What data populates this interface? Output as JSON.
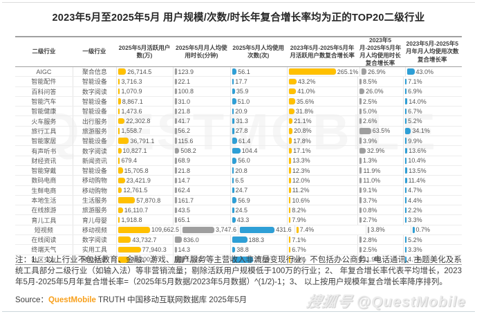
{
  "title": "2023年5月至2025年5月 用户规模/次数/时长年复合增长率均为正的TOP20二级行业",
  "chart_data": {
    "type": "table",
    "title": "2023年5月至2025年5月 用户规模/次数/时长年复合增长率均为正的TOP20二级行业",
    "columns": [
      "二级行业",
      "一级行业",
      "2025年5月活跃用户数(万)",
      "2025年5月月人均使用时长(分钟)",
      "2025年5月人均使用次数(次)",
      "2023年5月-2025年5月年月活跃用户数复合增长率",
      "2023年5月-2025年5月年月人均使用时长复合增长率",
      "2023年5月-2025年5月年月人均使用次数复合增长率"
    ],
    "rows": [
      [
        "AIGC",
        "聚合信息",
        "26,714.5",
        "123.9",
        "56.1",
        "265.1%",
        "26.9%",
        "43.0%"
      ],
      [
        "智能配件",
        "智能设备",
        "3,716.3",
        "22.1",
        "17.7",
        "43.2%",
        "8.5%",
        "7.1%"
      ],
      [
        "百科问答",
        "数字阅读",
        "1,070.9",
        "100.8",
        "35.9",
        "41.0%",
        "26.0%",
        "6.9%"
      ],
      [
        "智能汽车",
        "智能设备",
        "8,867.1",
        "31.0",
        "51.0",
        "35.6%",
        "2.5%",
        "14.0%"
      ],
      [
        "智能健康",
        "智能设备",
        "1,473.6",
        "21.8",
        "20.9",
        "31.8%",
        "5.0%",
        "6.7%"
      ],
      [
        "火车服务",
        "出行服务",
        "22,302.8",
        "41.7",
        "31.3",
        "21.1%",
        "2.6%",
        "5.2%"
      ],
      [
        "旅行工具",
        "旅游服务",
        "1,558.7",
        "56.2",
        "27.8",
        "20.8%",
        "63.5%",
        "34.1%"
      ],
      [
        "智能家居",
        "智能设备",
        "36,791.1",
        "115.6",
        "61.4",
        "17.8%",
        "3.9%",
        "9.9%"
      ],
      [
        "有声听书",
        "数字阅读",
        "10,827.1",
        "508.2",
        "104.4",
        "17.1%",
        "32.9%",
        "13.6%"
      ],
      [
        "财经资讯",
        "新闻资讯",
        "679.4",
        "68.9",
        "56.0",
        "13.3%",
        "1.3%",
        "10.4%"
      ],
      [
        "智能穿戴",
        "智能设备",
        "15,705.8",
        "21.8",
        "20.8",
        "12.3%",
        "11.9%",
        "13.5%"
      ],
      [
        "数码电商",
        "移动购物",
        "23,421.9",
        "14.7",
        "6.5",
        "12.0%",
        "11.0%",
        "11.4%"
      ],
      [
        "生鲜电商",
        "移动购物",
        "12,761.5",
        "62.4",
        "24.7",
        "11.2%",
        "9.1%",
        "4.7%"
      ],
      [
        "本地生活",
        "生活服务",
        "57,870.8",
        "161.7",
        "56.9",
        "10.6%",
        "3.7%",
        "4.4%"
      ],
      [
        "在线旅游",
        "旅游服务",
        "16,110.7",
        "43.5",
        "24.5",
        "8.2%",
        "0.8%",
        "2.2%"
      ],
      [
        "育儿工具",
        "育儿母婴",
        "1,918.8",
        "65.1",
        "43.3",
        "7.9%",
        "2.7%",
        "3.3%"
      ],
      [
        "短视频",
        "移动视频",
        "109,662.5",
        "3,747.6",
        "431.6",
        "7.4%",
        "3.8%",
        "0.7%"
      ],
      [
        "在线阅读",
        "数字阅读",
        "43,732.7",
        "836.0",
        "188.3",
        "7.1%",
        "2.8%",
        "5.2%"
      ],
      [
        "终端天气",
        "实用工具",
        "77,940.3",
        "14.3",
        "38.8",
        "6.7%",
        "2.5%",
        "3.3%"
      ],
      [
        "社区交友",
        "移动社交",
        "39,200.9",
        "1,122.7",
        "257.9",
        "5.4%",
        "11.9%",
        "4.7%"
      ]
    ]
  },
  "notes": "注：1、 以上行业不包括教育、金融、游戏、房产服务等主营收入非流量变现行业；不包括办公商务、电话通讯、主题美化及系统工具部分二级行业（如输入法）等非营销流量；剔除活跃用户规模低于100万的行业；2、 年复合增长率代表平均增长，2023年5月-2025年5月年复合增长率=（2025年5月数据/2023年5月数据）^(1/2)-1；3、 以上按用户规模年复合增长率降序排列。",
  "source": {
    "prefix": "Source：",
    "brand": "QuestMobile",
    "suffix": " TRUTH 中国移动互联网数据库 2025年5月"
  },
  "watermarks": {
    "center": "QUESTMOBILE",
    "corner_cn": "搜狐号",
    "corner_handle": "@QuestMobile"
  },
  "colors": {
    "bar_yellow": "#FFC000",
    "bar_gray": "#9E9E9E",
    "bar_blue": "#2E9FD6",
    "brand_orange": "#F8A01C"
  }
}
